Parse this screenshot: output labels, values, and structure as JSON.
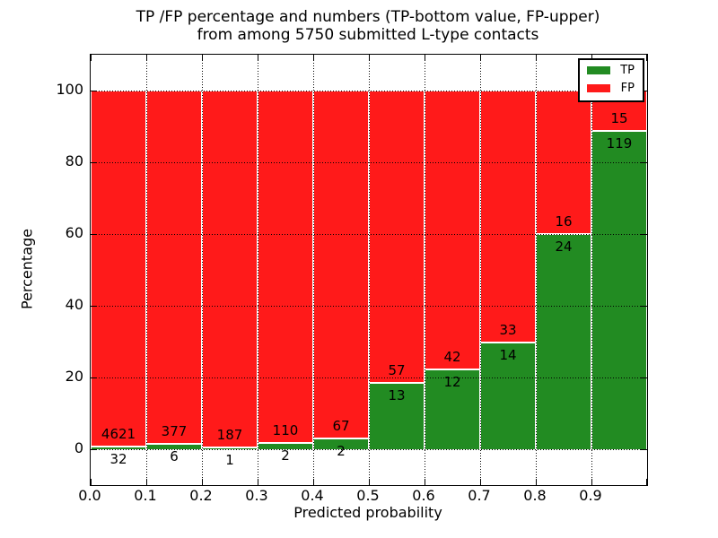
{
  "title": {
    "line1": "TP /FP percentage and numbers (TP-bottom value, FP-upper)",
    "line2": "from among 5750 submitted L-type contacts"
  },
  "chart_data": {
    "type": "bar",
    "stacked": true,
    "orientation": "vertical",
    "title": "TP /FP percentage and numbers (TP-bottom value, FP-upper) from among 5750 submitted L-type contacts",
    "xlabel": "Predicted probability",
    "ylabel": "Percentage",
    "x_bin_starts": [
      "0.0",
      "0.1",
      "0.2",
      "0.3",
      "0.4",
      "0.5",
      "0.6",
      "0.7",
      "0.8",
      "0.9"
    ],
    "bin_width": 0.1,
    "xlim": [
      0.0,
      1.0
    ],
    "ylim": [
      -10,
      110
    ],
    "y_ticks": [
      "0",
      "20",
      "40",
      "60",
      "80",
      "100"
    ],
    "y_tick_values": [
      0,
      20,
      40,
      60,
      80,
      100
    ],
    "grid": "dotted",
    "series": [
      {
        "name": "TP",
        "color": "#228b22",
        "counts": [
          32,
          6,
          1,
          2,
          2,
          13,
          12,
          14,
          24,
          119
        ],
        "pct": [
          0.69,
          1.57,
          0.53,
          1.79,
          2.9,
          18.57,
          22.22,
          29.79,
          60.0,
          88.81
        ]
      },
      {
        "name": "FP",
        "color": "#ff1a1a",
        "counts": [
          4621,
          377,
          187,
          110,
          67,
          57,
          42,
          33,
          16,
          15
        ],
        "pct": [
          99.31,
          98.43,
          99.47,
          98.21,
          97.1,
          81.43,
          77.78,
          70.21,
          40.0,
          11.19
        ]
      }
    ],
    "legend": {
      "position": "upper right",
      "entries": [
        "TP",
        "FP"
      ]
    },
    "total_submitted": 5750
  },
  "colors": {
    "tp": "#228b22",
    "fp": "#ff1a1a",
    "background": "#ffffff",
    "text": "#000000"
  }
}
